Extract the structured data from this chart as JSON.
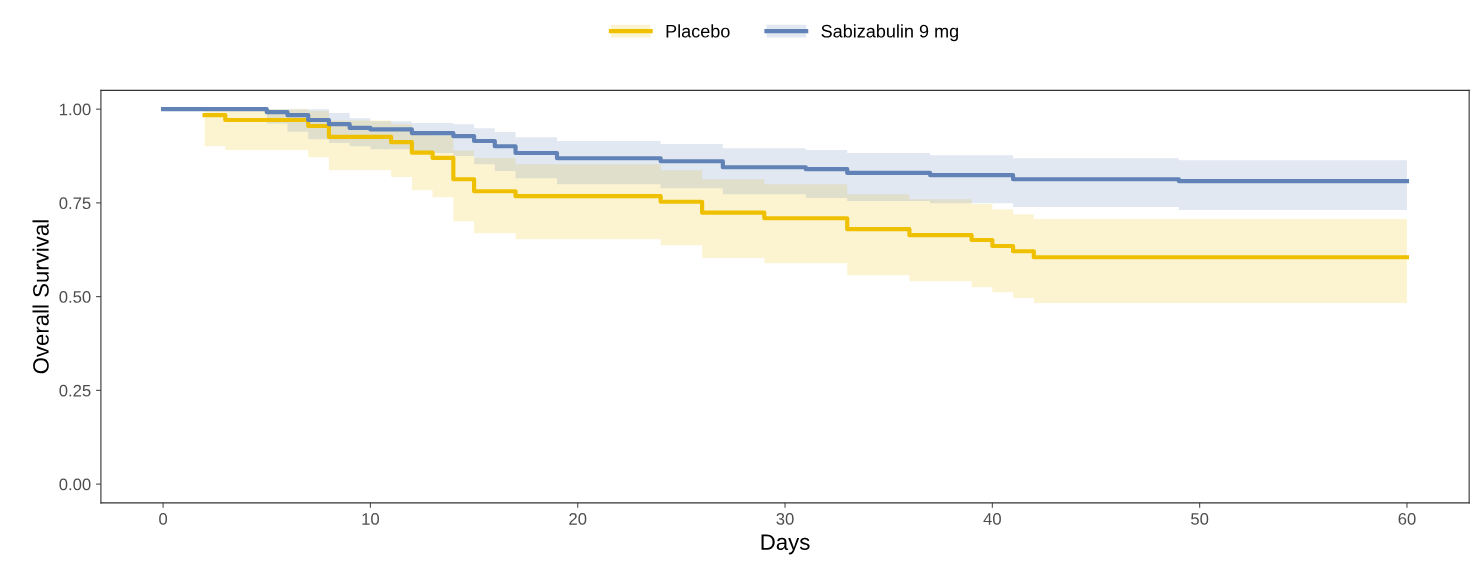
{
  "chart_data": {
    "type": "step",
    "xlabel": "Days",
    "ylabel": "Overall Survival",
    "xlim": [
      -3,
      63
    ],
    "ylim": [
      -0.05,
      1.05
    ],
    "xticks": [
      0,
      10,
      20,
      30,
      40,
      50,
      60
    ],
    "yticks": [
      {
        "value": 0,
        "label": "0.00"
      },
      {
        "value": 0.25,
        "label": "0.25"
      },
      {
        "value": 0.5,
        "label": "0.50"
      },
      {
        "value": 0.75,
        "label": "0.75"
      },
      {
        "value": 1,
        "label": "1.00"
      }
    ],
    "grid": false,
    "legend": "top",
    "line_style": "solid",
    "marker": "none",
    "series": [
      {
        "name": "Placebo",
        "color": "#efc000",
        "x": [
          2,
          3,
          7,
          8,
          11,
          12,
          13,
          14,
          15,
          17,
          24,
          26,
          29,
          33,
          36,
          39,
          40,
          41,
          42,
          60
        ],
        "values": [
          0.984,
          0.971,
          0.955,
          0.926,
          0.912,
          0.884,
          0.87,
          0.813,
          0.781,
          0.768,
          0.753,
          0.724,
          0.709,
          0.68,
          0.664,
          0.651,
          0.635,
          0.621,
          0.605,
          0.605
        ],
        "lower": [
          0.901,
          0.891,
          0.872,
          0.837,
          0.819,
          0.784,
          0.765,
          0.701,
          0.669,
          0.653,
          0.637,
          0.603,
          0.589,
          0.557,
          0.541,
          0.525,
          0.512,
          0.496,
          0.483,
          0.483
        ],
        "upper": [
          1,
          1,
          0.995,
          0.97,
          0.96,
          0.94,
          0.93,
          0.89,
          0.87,
          0.853,
          0.837,
          0.813,
          0.8,
          0.773,
          0.76,
          0.747,
          0.733,
          0.72,
          0.707,
          0.707
        ]
      },
      {
        "name": "Sabizabulin 9 mg",
        "color": "#6082b6",
        "x": [
          0,
          5,
          6,
          7,
          8,
          9,
          10,
          12,
          14,
          15,
          16,
          17,
          19,
          24,
          27,
          31,
          33,
          37,
          41,
          49,
          60
        ],
        "values": [
          1,
          0.992,
          0.984,
          0.971,
          0.96,
          0.95,
          0.946,
          0.936,
          0.928,
          0.915,
          0.901,
          0.883,
          0.869,
          0.861,
          0.845,
          0.84,
          0.83,
          0.824,
          0.813,
          0.808,
          0.808
        ],
        "lower": [
          1,
          0.962,
          0.94,
          0.92,
          0.91,
          0.901,
          0.893,
          0.883,
          0.875,
          0.853,
          0.835,
          0.816,
          0.8,
          0.789,
          0.773,
          0.763,
          0.755,
          0.749,
          0.739,
          0.731,
          0.731
        ],
        "upper": [
          1,
          1,
          1,
          1,
          0.99,
          0.976,
          0.968,
          0.963,
          0.96,
          0.949,
          0.939,
          0.925,
          0.915,
          0.907,
          0.896,
          0.891,
          0.883,
          0.877,
          0.869,
          0.864,
          0.864
        ]
      }
    ]
  }
}
